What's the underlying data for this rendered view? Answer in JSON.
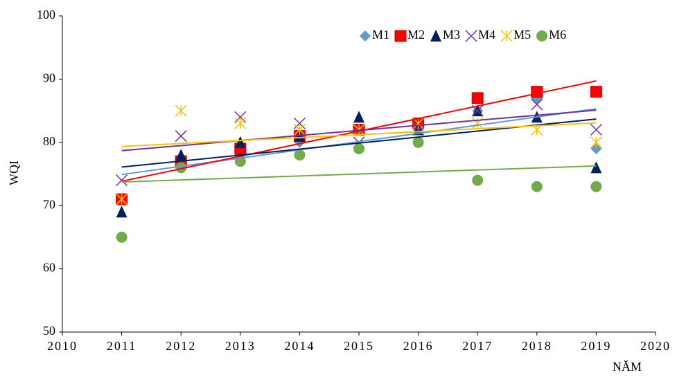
{
  "chart_data": {
    "type": "scatter",
    "x_label": "NĂM",
    "y_label": "WQI",
    "x": [
      2011,
      2012,
      2013,
      2014,
      2015,
      2016,
      2017,
      2018,
      2019
    ],
    "series": [
      {
        "name": "M1",
        "color": "#5b9bd5",
        "marker": "diamond",
        "values": [
          71,
          77,
          78,
          80,
          82,
          82,
          85,
          87,
          79
        ]
      },
      {
        "name": "M2",
        "color": "#ff0000",
        "marker": "square",
        "values": [
          71,
          77,
          79,
          81,
          82,
          83,
          87,
          88,
          88
        ]
      },
      {
        "name": "M3",
        "color": "#002060",
        "marker": "triangle",
        "values": [
          69,
          78,
          80,
          81,
          84,
          82,
          85,
          84,
          76
        ]
      },
      {
        "name": "M4",
        "color": "#7030a0",
        "marker": "x",
        "values": [
          74,
          81,
          84,
          83,
          80,
          82,
          85,
          86,
          82
        ]
      },
      {
        "name": "M5",
        "color": "#ffc000",
        "marker": "asterisk",
        "values": [
          71,
          85,
          83,
          82,
          82,
          83,
          83,
          82,
          80
        ]
      },
      {
        "name": "M6",
        "color": "#70ad47",
        "marker": "circle",
        "values": [
          65,
          76,
          77,
          78,
          79,
          80,
          74,
          73,
          73
        ]
      }
    ],
    "trendline": true,
    "legend": "top-right",
    "xlim": [
      2010,
      2020
    ],
    "xticks": [
      2010,
      2011,
      2012,
      2013,
      2014,
      2015,
      2016,
      2017,
      2018,
      2019,
      2020
    ],
    "ylim": [
      50,
      100
    ],
    "yticks": [
      50,
      60,
      70,
      80,
      90,
      100
    ]
  }
}
